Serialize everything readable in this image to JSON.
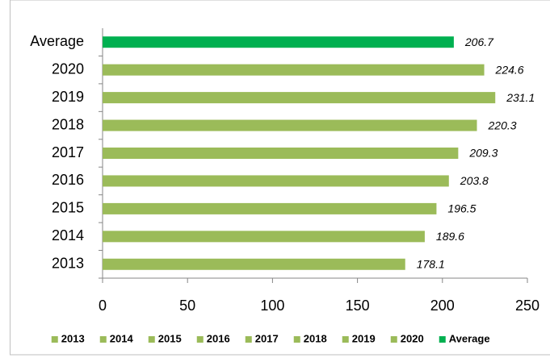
{
  "chart_data": {
    "type": "bar",
    "orientation": "horizontal",
    "categories": [
      "2013",
      "2014",
      "2015",
      "2016",
      "2017",
      "2018",
      "2019",
      "2020",
      "Average"
    ],
    "values": [
      178.1,
      189.6,
      196.5,
      203.8,
      209.3,
      220.3,
      231.1,
      224.6,
      206.7
    ],
    "colors": [
      "#9bbb59",
      "#9bbb59",
      "#9bbb59",
      "#9bbb59",
      "#9bbb59",
      "#9bbb59",
      "#9bbb59",
      "#9bbb59",
      "#00b050"
    ],
    "xlim": [
      0,
      250
    ],
    "xticks": [
      0,
      50,
      100,
      150,
      200,
      250
    ],
    "grid": false,
    "legend": "bottom"
  }
}
